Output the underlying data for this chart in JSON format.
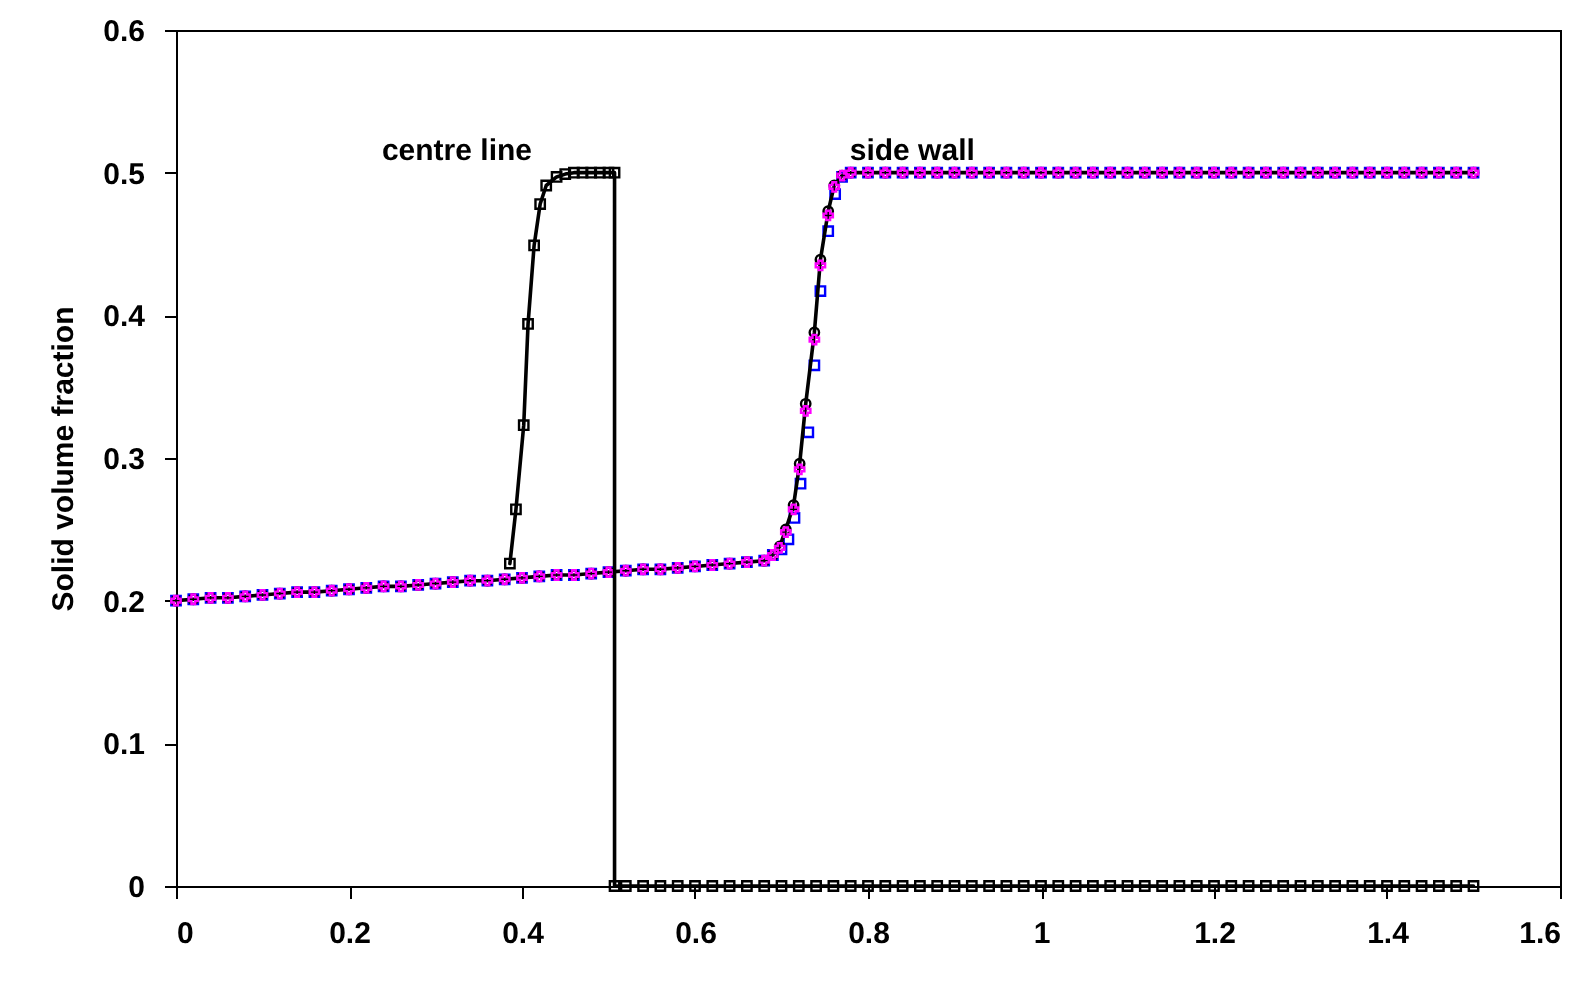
{
  "chart_data": {
    "type": "line",
    "ylabel": "Solid volume fraction",
    "xlim": [
      0,
      1.6
    ],
    "xticks": [
      0,
      0.2,
      0.4,
      0.6,
      0.8,
      1,
      1.2,
      1.4,
      1.6
    ],
    "ylim": [
      0,
      0.6
    ],
    "yticks": [
      0,
      0.1,
      0.2,
      0.3,
      0.4,
      0.5,
      0.6
    ],
    "grid": false,
    "annotations": [
      "centre line",
      "side wall"
    ],
    "series": [
      {
        "type": "scatter",
        "color": "#0000ff",
        "marker": "square",
        "x": [
          0,
          0.02,
          0.04,
          0.06,
          0.08,
          0.1,
          0.12,
          0.14,
          0.16,
          0.18,
          0.2,
          0.22,
          0.24,
          0.26,
          0.28,
          0.3,
          0.32,
          0.34,
          0.36,
          0.38,
          0.4,
          0.42,
          0.44,
          0.46,
          0.48,
          0.5,
          0.52,
          0.54,
          0.56,
          0.58,
          0.6,
          0.62,
          0.64,
          0.66,
          0.68,
          0.69,
          0.7,
          0.708,
          0.715,
          0.722,
          0.731,
          0.738,
          0.745,
          0.754,
          0.762,
          0.77,
          0.78,
          0.8,
          0.82,
          0.84,
          0.86,
          0.88,
          0.9,
          0.92,
          0.94,
          0.96,
          0.98,
          1,
          1.02,
          1.04,
          1.06,
          1.08,
          1.1,
          1.12,
          1.14,
          1.16,
          1.18,
          1.2,
          1.22,
          1.24,
          1.26,
          1.28,
          1.3,
          1.32,
          1.34,
          1.36,
          1.38,
          1.4,
          1.42,
          1.44,
          1.46,
          1.48,
          1.5
        ],
        "values": [
          0.2,
          0.201,
          0.202,
          0.202,
          0.203,
          0.204,
          0.205,
          0.206,
          0.206,
          0.207,
          0.208,
          0.209,
          0.21,
          0.21,
          0.211,
          0.212,
          0.213,
          0.214,
          0.214,
          0.215,
          0.216,
          0.217,
          0.218,
          0.218,
          0.219,
          0.22,
          0.221,
          0.222,
          0.222,
          0.223,
          0.224,
          0.225,
          0.226,
          0.227,
          0.228,
          0.232,
          0.236,
          0.243,
          0.258,
          0.282,
          0.318,
          0.365,
          0.417,
          0.459,
          0.485,
          0.497,
          0.5,
          0.5,
          0.5,
          0.5,
          0.5,
          0.5,
          0.5,
          0.5,
          0.5,
          0.5,
          0.5,
          0.5,
          0.5,
          0.5,
          0.5,
          0.5,
          0.5,
          0.5,
          0.5,
          0.5,
          0.5,
          0.5,
          0.5,
          0.5,
          0.5,
          0.5,
          0.5,
          0.5,
          0.5,
          0.5,
          0.5,
          0.5,
          0.5,
          0.5,
          0.5,
          0.5,
          0.5
        ]
      },
      {
        "color": "#000000",
        "marker": "circle",
        "line_style": "solid",
        "x": [
          0,
          0.02,
          0.04,
          0.06,
          0.08,
          0.1,
          0.12,
          0.14,
          0.16,
          0.18,
          0.2,
          0.22,
          0.24,
          0.26,
          0.28,
          0.3,
          0.32,
          0.34,
          0.36,
          0.38,
          0.4,
          0.42,
          0.44,
          0.46,
          0.48,
          0.5,
          0.52,
          0.54,
          0.56,
          0.58,
          0.6,
          0.62,
          0.64,
          0.66,
          0.68,
          0.69,
          0.698,
          0.705,
          0.714,
          0.721,
          0.728,
          0.738,
          0.745,
          0.754,
          0.761,
          0.77,
          0.78,
          0.8,
          0.82,
          0.84,
          0.86,
          0.88,
          0.9,
          0.92,
          0.94,
          0.96,
          0.98,
          1,
          1.02,
          1.04,
          1.06,
          1.08,
          1.1,
          1.12,
          1.14,
          1.16,
          1.18,
          1.2,
          1.22,
          1.24,
          1.26,
          1.28,
          1.3,
          1.32,
          1.34,
          1.36,
          1.38,
          1.4,
          1.42,
          1.44,
          1.46,
          1.48,
          1.5
        ],
        "values": [
          0.2,
          0.201,
          0.202,
          0.202,
          0.203,
          0.204,
          0.205,
          0.206,
          0.206,
          0.207,
          0.208,
          0.209,
          0.21,
          0.21,
          0.211,
          0.212,
          0.213,
          0.214,
          0.214,
          0.215,
          0.216,
          0.217,
          0.218,
          0.218,
          0.219,
          0.22,
          0.221,
          0.222,
          0.222,
          0.223,
          0.224,
          0.225,
          0.226,
          0.227,
          0.228,
          0.232,
          0.238,
          0.25,
          0.267,
          0.296,
          0.338,
          0.388,
          0.439,
          0.473,
          0.491,
          0.498,
          0.5,
          0.5,
          0.5,
          0.5,
          0.5,
          0.5,
          0.5,
          0.5,
          0.5,
          0.5,
          0.5,
          0.5,
          0.5,
          0.5,
          0.5,
          0.5,
          0.5,
          0.5,
          0.5,
          0.5,
          0.5,
          0.5,
          0.5,
          0.5,
          0.5,
          0.5,
          0.5,
          0.5,
          0.5,
          0.5,
          0.5,
          0.5,
          0.5,
          0.5,
          0.5,
          0.5,
          0.5
        ]
      },
      {
        "type": "scatter",
        "color": "#ff00ff",
        "marker": "cross",
        "x": [
          0,
          0.02,
          0.04,
          0.06,
          0.08,
          0.1,
          0.12,
          0.14,
          0.16,
          0.18,
          0.2,
          0.22,
          0.24,
          0.26,
          0.28,
          0.3,
          0.32,
          0.34,
          0.36,
          0.38,
          0.4,
          0.42,
          0.44,
          0.46,
          0.48,
          0.5,
          0.52,
          0.54,
          0.56,
          0.58,
          0.6,
          0.62,
          0.64,
          0.66,
          0.68,
          0.69,
          0.698,
          0.705,
          0.714,
          0.721,
          0.728,
          0.738,
          0.745,
          0.754,
          0.761,
          0.77,
          0.78,
          0.8,
          0.82,
          0.84,
          0.86,
          0.88,
          0.9,
          0.92,
          0.94,
          0.96,
          0.98,
          1,
          1.02,
          1.04,
          1.06,
          1.08,
          1.1,
          1.12,
          1.14,
          1.16,
          1.18,
          1.2,
          1.22,
          1.24,
          1.26,
          1.28,
          1.3,
          1.32,
          1.34,
          1.36,
          1.38,
          1.4,
          1.42,
          1.44,
          1.46,
          1.48,
          1.5
        ],
        "values": [
          0.2,
          0.201,
          0.202,
          0.202,
          0.203,
          0.204,
          0.205,
          0.206,
          0.206,
          0.207,
          0.208,
          0.209,
          0.21,
          0.21,
          0.211,
          0.212,
          0.213,
          0.214,
          0.214,
          0.215,
          0.216,
          0.217,
          0.218,
          0.218,
          0.219,
          0.22,
          0.221,
          0.222,
          0.222,
          0.223,
          0.224,
          0.225,
          0.226,
          0.227,
          0.228,
          0.232,
          0.237,
          0.248,
          0.264,
          0.292,
          0.333,
          0.383,
          0.435,
          0.47,
          0.49,
          0.498,
          0.5,
          0.5,
          0.5,
          0.5,
          0.5,
          0.5,
          0.5,
          0.5,
          0.5,
          0.5,
          0.5,
          0.5,
          0.5,
          0.5,
          0.5,
          0.5,
          0.5,
          0.5,
          0.5,
          0.5,
          0.5,
          0.5,
          0.5,
          0.5,
          0.5,
          0.5,
          0.5,
          0.5,
          0.5,
          0.5,
          0.5,
          0.5,
          0.5,
          0.5,
          0.5,
          0.5,
          0.5
        ]
      },
      {
        "color": "#000000",
        "marker": "square",
        "line_style": "solid",
        "x": [
          0.386,
          0.393,
          0.402,
          0.407,
          0.414,
          0.421,
          0.428,
          0.44,
          0.45,
          0.46,
          0.47,
          0.48,
          0.49,
          0.5,
          0.507,
          0.507,
          0.52,
          0.54,
          0.56,
          0.58,
          0.6,
          0.62,
          0.64,
          0.66,
          0.68,
          0.7,
          0.72,
          0.74,
          0.76,
          0.78,
          0.8,
          0.82,
          0.84,
          0.86,
          0.88,
          0.9,
          0.92,
          0.94,
          0.96,
          0.98,
          1,
          1.02,
          1.04,
          1.06,
          1.08,
          1.1,
          1.12,
          1.14,
          1.16,
          1.18,
          1.2,
          1.22,
          1.24,
          1.26,
          1.28,
          1.3,
          1.32,
          1.34,
          1.36,
          1.38,
          1.4,
          1.42,
          1.44,
          1.46,
          1.48,
          1.5
        ],
        "values": [
          0.226,
          0.264,
          0.323,
          0.394,
          0.449,
          0.478,
          0.491,
          0.497,
          0.499,
          0.5,
          0.5,
          0.5,
          0.5,
          0.5,
          0.5,
          0,
          0,
          0,
          0,
          0,
          0,
          0,
          0,
          0,
          0,
          0,
          0,
          0,
          0,
          0,
          0,
          0,
          0,
          0,
          0,
          0,
          0,
          0,
          0,
          0,
          0,
          0,
          0,
          0,
          0,
          0,
          0,
          0,
          0,
          0,
          0,
          0,
          0,
          0,
          0,
          0,
          0,
          0,
          0,
          0,
          0,
          0,
          0,
          0,
          0,
          0
        ]
      }
    ]
  }
}
